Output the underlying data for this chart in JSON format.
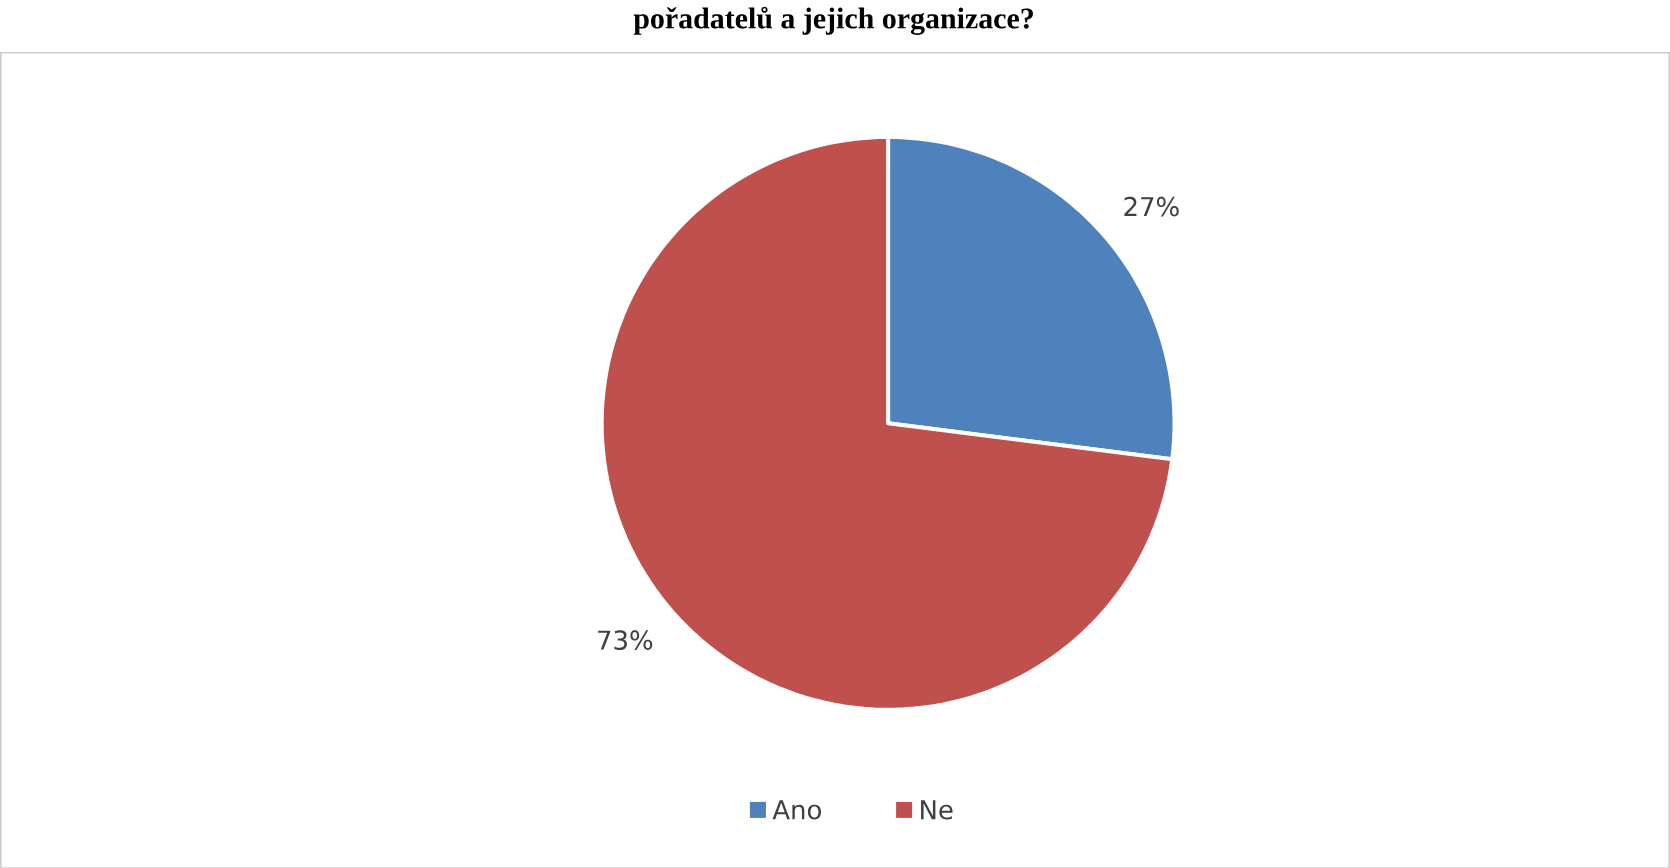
{
  "chart_data": {
    "type": "pie",
    "title": "pořadatelů a jejich organizace?",
    "categories": [
      "Ano",
      "Ne"
    ],
    "values": [
      27,
      73
    ],
    "colors": [
      "#4f81bd",
      "#c0504d"
    ],
    "value_labels": [
      "27%",
      "73%"
    ],
    "legend": "bottom"
  }
}
